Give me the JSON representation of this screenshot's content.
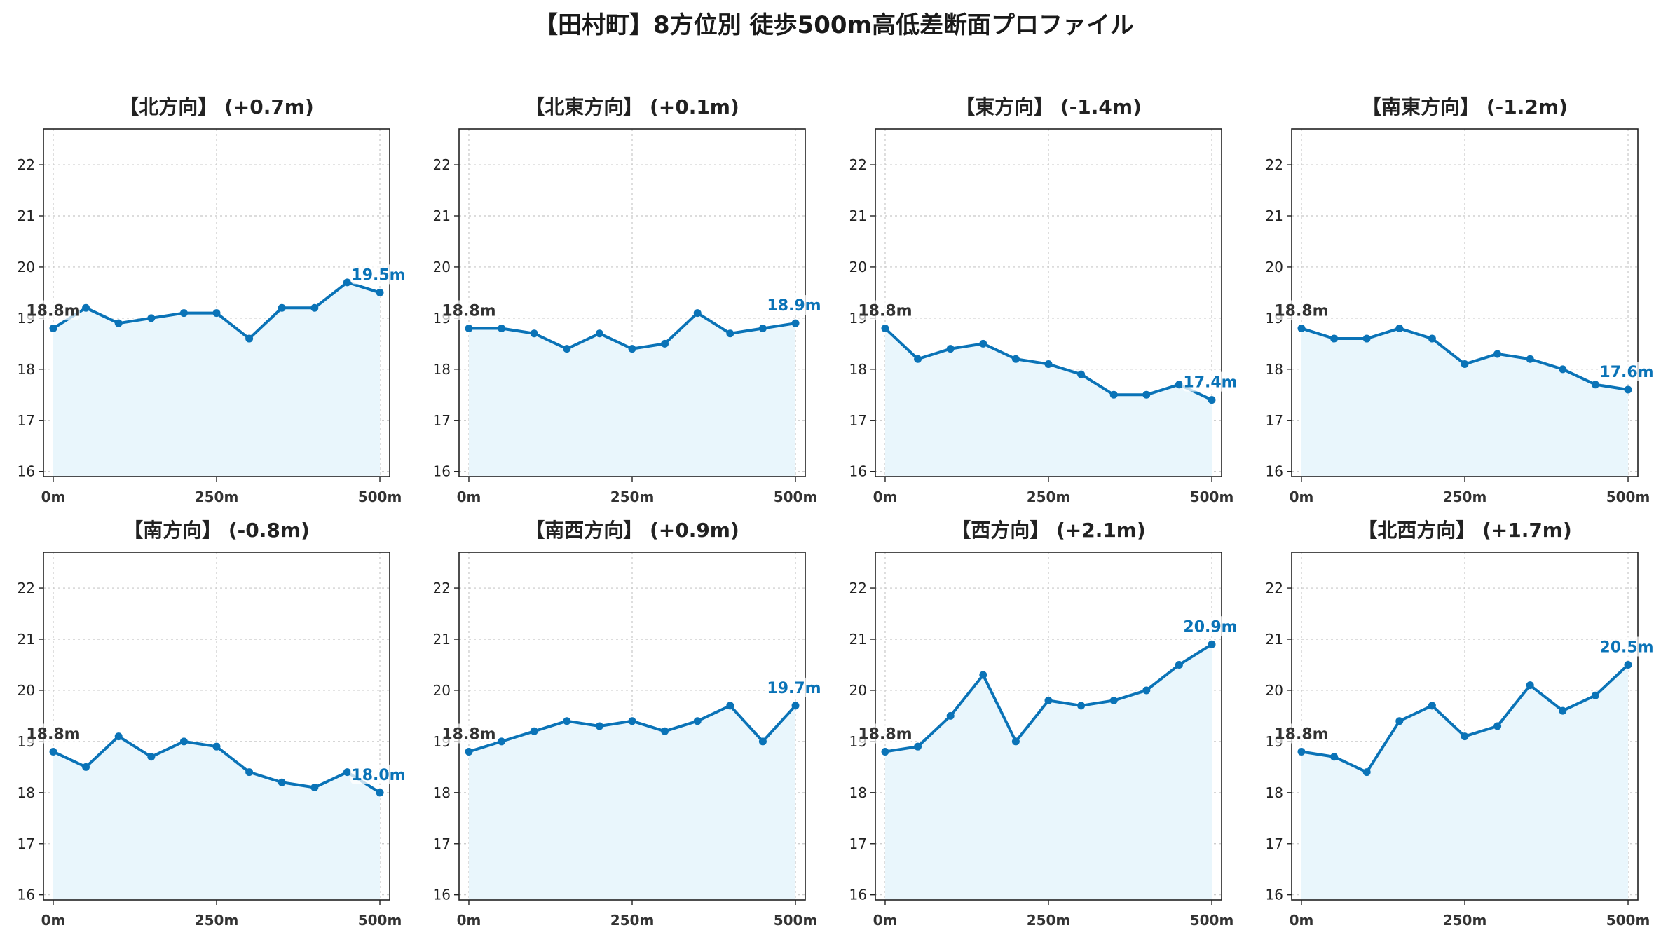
{
  "figure": {
    "title": "【田村町】8方位別 徒歩500m高低差断面プロファイル"
  },
  "colors": {
    "line": "#0a73b7",
    "fill": "#e9f6fc",
    "start_label": "#333333",
    "end_label": "#0a73b7",
    "grid": "#c8c8c8"
  },
  "chart_data": [
    {
      "type": "area",
      "title": "【北方向】 (+0.7m)",
      "x": [
        0,
        50,
        100,
        150,
        200,
        250,
        300,
        350,
        400,
        450,
        500
      ],
      "values": [
        18.8,
        19.2,
        18.9,
        19.0,
        19.1,
        19.1,
        18.6,
        19.2,
        19.2,
        19.7,
        19.5
      ],
      "start_label": "18.8m",
      "end_label": "19.5m",
      "ylim": [
        15.9,
        22.7
      ],
      "yticks": [
        16,
        17,
        18,
        19,
        20,
        21,
        22
      ],
      "xlim": [
        -15,
        515
      ],
      "xticks": [
        "0m",
        "250m",
        "500m"
      ],
      "grid": true
    },
    {
      "type": "area",
      "title": "【北東方向】 (+0.1m)",
      "x": [
        0,
        50,
        100,
        150,
        200,
        250,
        300,
        350,
        400,
        450,
        500
      ],
      "values": [
        18.8,
        18.8,
        18.7,
        18.4,
        18.7,
        18.4,
        18.5,
        19.1,
        18.7,
        18.8,
        18.9
      ],
      "start_label": "18.8m",
      "end_label": "18.9m",
      "ylim": [
        15.9,
        22.7
      ],
      "yticks": [
        16,
        17,
        18,
        19,
        20,
        21,
        22
      ],
      "xlim": [
        -15,
        515
      ],
      "xticks": [
        "0m",
        "250m",
        "500m"
      ],
      "grid": true
    },
    {
      "type": "area",
      "title": "【東方向】 (-1.4m)",
      "x": [
        0,
        50,
        100,
        150,
        200,
        250,
        300,
        350,
        400,
        450,
        500
      ],
      "values": [
        18.8,
        18.2,
        18.4,
        18.5,
        18.2,
        18.1,
        17.9,
        17.5,
        17.5,
        17.7,
        17.4
      ],
      "start_label": "18.8m",
      "end_label": "17.4m",
      "ylim": [
        15.9,
        22.7
      ],
      "yticks": [
        16,
        17,
        18,
        19,
        20,
        21,
        22
      ],
      "xlim": [
        -15,
        515
      ],
      "xticks": [
        "0m",
        "250m",
        "500m"
      ],
      "grid": true
    },
    {
      "type": "area",
      "title": "【南東方向】 (-1.2m)",
      "x": [
        0,
        50,
        100,
        150,
        200,
        250,
        300,
        350,
        400,
        450,
        500
      ],
      "values": [
        18.8,
        18.6,
        18.6,
        18.8,
        18.6,
        18.1,
        18.3,
        18.2,
        18.0,
        17.7,
        17.6
      ],
      "start_label": "18.8m",
      "end_label": "17.6m",
      "ylim": [
        15.9,
        22.7
      ],
      "yticks": [
        16,
        17,
        18,
        19,
        20,
        21,
        22
      ],
      "xlim": [
        -15,
        515
      ],
      "xticks": [
        "0m",
        "250m",
        "500m"
      ],
      "grid": true
    },
    {
      "type": "area",
      "title": "【南方向】 (-0.8m)",
      "x": [
        0,
        50,
        100,
        150,
        200,
        250,
        300,
        350,
        400,
        450,
        500
      ],
      "values": [
        18.8,
        18.5,
        19.1,
        18.7,
        19.0,
        18.9,
        18.4,
        18.2,
        18.1,
        18.4,
        18.0
      ],
      "start_label": "18.8m",
      "end_label": "18.0m",
      "ylim": [
        15.9,
        22.7
      ],
      "yticks": [
        16,
        17,
        18,
        19,
        20,
        21,
        22
      ],
      "xlim": [
        -15,
        515
      ],
      "xticks": [
        "0m",
        "250m",
        "500m"
      ],
      "grid": true
    },
    {
      "type": "area",
      "title": "【南西方向】 (+0.9m)",
      "x": [
        0,
        50,
        100,
        150,
        200,
        250,
        300,
        350,
        400,
        450,
        500
      ],
      "values": [
        18.8,
        19.0,
        19.2,
        19.4,
        19.3,
        19.4,
        19.2,
        19.4,
        19.7,
        19.0,
        19.7
      ],
      "start_label": "18.8m",
      "end_label": "19.7m",
      "ylim": [
        15.9,
        22.7
      ],
      "yticks": [
        16,
        17,
        18,
        19,
        20,
        21,
        22
      ],
      "xlim": [
        -15,
        515
      ],
      "xticks": [
        "0m",
        "250m",
        "500m"
      ],
      "grid": true
    },
    {
      "type": "area",
      "title": "【西方向】 (+2.1m)",
      "x": [
        0,
        50,
        100,
        150,
        200,
        250,
        300,
        350,
        400,
        450,
        500
      ],
      "values": [
        18.8,
        18.9,
        19.5,
        20.3,
        19.0,
        19.8,
        19.7,
        19.8,
        20.0,
        20.5,
        20.9
      ],
      "start_label": "18.8m",
      "end_label": "20.9m",
      "ylim": [
        15.9,
        22.7
      ],
      "yticks": [
        16,
        17,
        18,
        19,
        20,
        21,
        22
      ],
      "xlim": [
        -15,
        515
      ],
      "xticks": [
        "0m",
        "250m",
        "500m"
      ],
      "grid": true
    },
    {
      "type": "area",
      "title": "【北西方向】 (+1.7m)",
      "x": [
        0,
        50,
        100,
        150,
        200,
        250,
        300,
        350,
        400,
        450,
        500
      ],
      "values": [
        18.8,
        18.7,
        18.4,
        19.4,
        19.7,
        19.1,
        19.3,
        20.1,
        19.6,
        19.9,
        20.5
      ],
      "start_label": "18.8m",
      "end_label": "20.5m",
      "ylim": [
        15.9,
        22.7
      ],
      "yticks": [
        16,
        17,
        18,
        19,
        20,
        21,
        22
      ],
      "xlim": [
        -15,
        515
      ],
      "xticks": [
        "0m",
        "250m",
        "500m"
      ],
      "grid": true
    }
  ]
}
